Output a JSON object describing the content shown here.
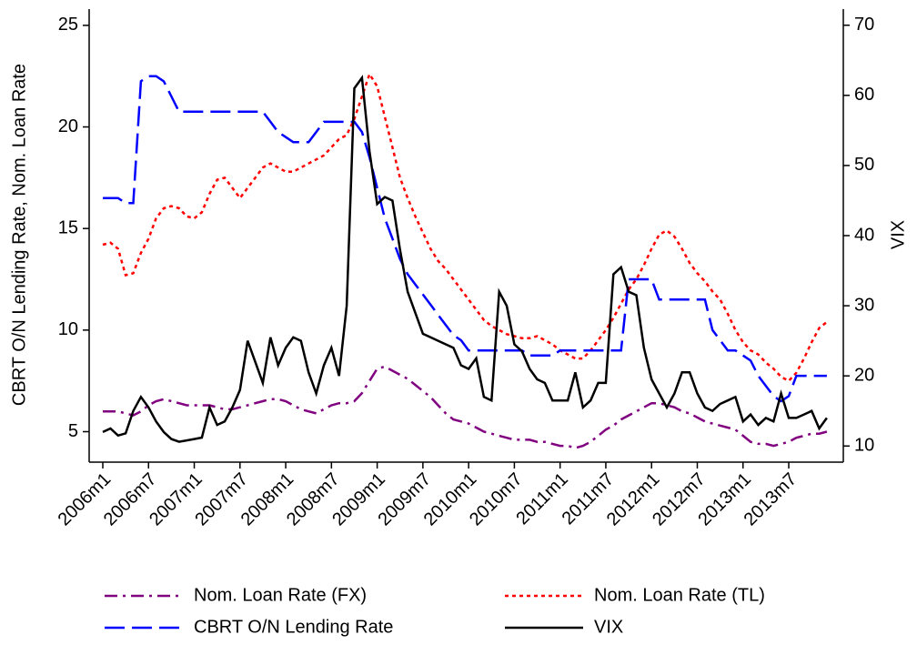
{
  "chart_data": {
    "type": "line",
    "ylabel": "CBRT O/N Lending Rate, Nom. Loan Rate",
    "y2label": "VIX",
    "categories": [
      "2006m1",
      null,
      null,
      null,
      null,
      null,
      "2006m7",
      null,
      null,
      null,
      null,
      null,
      "2007m1",
      null,
      null,
      null,
      null,
      null,
      "2007m7",
      null,
      null,
      null,
      null,
      null,
      "2008m1",
      null,
      null,
      null,
      null,
      null,
      "2008m7",
      null,
      null,
      null,
      null,
      null,
      "2009m1",
      null,
      null,
      null,
      null,
      null,
      "2009m7",
      null,
      null,
      null,
      null,
      null,
      "2010m1",
      null,
      null,
      null,
      null,
      null,
      "2010m7",
      null,
      null,
      null,
      null,
      null,
      "2011m1",
      null,
      null,
      null,
      null,
      null,
      "2011m7",
      null,
      null,
      null,
      null,
      null,
      "2012m1",
      null,
      null,
      null,
      null,
      null,
      "2012m7",
      null,
      null,
      null,
      null,
      null,
      "2013m1",
      null,
      null,
      null,
      null,
      null,
      "2013m7",
      null,
      null,
      null,
      null,
      null
    ],
    "ylim": [
      3.5,
      25.8
    ],
    "yticks": [
      5,
      10,
      15,
      20,
      25
    ],
    "y2lim": [
      7.7,
      72.3
    ],
    "y2ticks": [
      10,
      20,
      30,
      40,
      50,
      60,
      70
    ],
    "series": [
      {
        "name": "Nom. Loan Rate (FX)",
        "color": "#800080",
        "style": "dashdot",
        "values": [
          6.0,
          6.0,
          6.0,
          5.9,
          5.8,
          6.0,
          6.3,
          6.5,
          6.6,
          6.5,
          6.4,
          6.3,
          6.3,
          6.3,
          6.3,
          6.2,
          6.1,
          6.1,
          6.2,
          6.3,
          6.4,
          6.5,
          6.6,
          6.6,
          6.5,
          6.3,
          6.1,
          6.0,
          5.9,
          6.1,
          6.3,
          6.4,
          6.4,
          6.5,
          6.9,
          7.5,
          8.1,
          8.2,
          8.0,
          7.8,
          7.6,
          7.3,
          7.0,
          6.7,
          6.3,
          5.9,
          5.6,
          5.5,
          5.4,
          5.2,
          5.0,
          4.9,
          4.8,
          4.7,
          4.6,
          4.6,
          4.6,
          4.5,
          4.5,
          4.4,
          4.3,
          4.3,
          4.2,
          4.3,
          4.5,
          4.8,
          5.1,
          5.3,
          5.6,
          5.8,
          6.0,
          6.2,
          6.4,
          6.4,
          6.3,
          6.2,
          6.0,
          5.9,
          5.7,
          5.5,
          5.4,
          5.3,
          5.2,
          5.1,
          4.8,
          4.5,
          4.4,
          4.4,
          4.3,
          4.4,
          4.5,
          4.7,
          4.8,
          4.9,
          4.9,
          5.0
        ]
      },
      {
        "name": "Nom. Loan Rate (TL)",
        "color": "#ff0000",
        "style": "dotted",
        "values": [
          14.2,
          14.3,
          14.0,
          12.7,
          12.8,
          13.8,
          14.5,
          15.5,
          16.0,
          16.1,
          16.0,
          15.6,
          15.5,
          15.8,
          16.7,
          17.4,
          17.5,
          17.0,
          16.5,
          17.0,
          17.5,
          18.0,
          18.2,
          18.0,
          17.8,
          17.8,
          18.0,
          18.2,
          18.4,
          18.6,
          19.0,
          19.4,
          19.6,
          20.4,
          21.5,
          22.6,
          22.0,
          20.5,
          19.0,
          17.5,
          16.5,
          15.6,
          14.8,
          14.0,
          13.4,
          13.0,
          12.5,
          12.0,
          11.5,
          11.0,
          10.5,
          10.2,
          10.0,
          9.8,
          9.7,
          9.6,
          9.6,
          9.7,
          9.5,
          9.3,
          9.0,
          8.8,
          8.6,
          8.6,
          9.0,
          9.5,
          10.0,
          10.6,
          11.3,
          12.0,
          12.5,
          13.2,
          14.0,
          14.7,
          14.9,
          14.6,
          14.0,
          13.3,
          12.8,
          12.4,
          11.9,
          11.5,
          10.8,
          10.0,
          9.4,
          9.0,
          8.8,
          8.4,
          8.1,
          7.7,
          7.5,
          7.9,
          8.6,
          9.4,
          10.1,
          10.4
        ]
      },
      {
        "name": "CBRT O/N Lending Rate",
        "color": "#0000ff",
        "style": "dashed",
        "values": [
          16.5,
          16.5,
          16.5,
          16.25,
          16.25,
          22.25,
          22.5,
          22.5,
          22.25,
          21.5,
          20.75,
          20.75,
          20.75,
          20.75,
          20.75,
          20.75,
          20.75,
          20.75,
          20.75,
          20.75,
          20.75,
          20.75,
          20.25,
          19.75,
          19.5,
          19.25,
          19.25,
          19.25,
          19.75,
          20.25,
          20.25,
          20.25,
          20.25,
          20.25,
          19.75,
          18.5,
          17.0,
          15.5,
          14.5,
          13.5,
          12.75,
          12.25,
          11.75,
          11.25,
          10.75,
          10.25,
          9.75,
          9.5,
          9,
          9,
          9,
          9,
          9,
          9,
          9,
          9,
          8.75,
          8.75,
          8.75,
          8.75,
          9,
          9,
          9,
          9,
          9,
          9,
          9,
          9,
          9,
          12.5,
          12.5,
          12.5,
          12.5,
          11.5,
          11.5,
          11.5,
          11.5,
          11.5,
          11.5,
          11.5,
          10.0,
          9.5,
          9.0,
          9.0,
          8.75,
          8.5,
          7.75,
          7.25,
          6.75,
          6.5,
          6.75,
          7.75,
          7.75,
          7.75,
          7.75,
          7.75
        ]
      },
      {
        "name": "VIX",
        "color": "#000000",
        "style": "solid",
        "axis": "y2",
        "values": [
          12,
          12.5,
          11.5,
          11.8,
          15,
          17,
          15.5,
          13.5,
          12,
          11,
          10.6,
          10.8,
          11.0,
          11.2,
          15.5,
          13.0,
          13.5,
          15.5,
          18.0,
          25.0,
          22.0,
          19.0,
          25.5,
          21.5,
          24.0,
          25.5,
          25.0,
          20.5,
          17.5,
          21.5,
          24.0,
          20.0,
          30.0,
          61.0,
          62.5,
          52.0,
          44.5,
          45.5,
          45.0,
          38.0,
          32.0,
          29.0,
          26.0,
          25.5,
          25.0,
          24.5,
          24.0,
          21.5,
          21.0,
          22.5,
          17.0,
          16.5,
          32.0,
          30.0,
          24.5,
          23.5,
          21.0,
          19.5,
          19.0,
          16.5,
          16.5,
          16.5,
          20.5,
          15.5,
          16.5,
          19.0,
          19.0,
          34.5,
          35.5,
          32.0,
          31.5,
          24.0,
          19.5,
          17.5,
          15.5,
          17.5,
          20.5,
          20.5,
          17.5,
          15.5,
          15.0,
          16.0,
          16.5,
          17.0,
          13.5,
          14.5,
          13.0,
          14.0,
          13.5,
          17.5,
          14.0,
          14.0,
          14.5,
          15.0,
          12.5,
          14.0
        ]
      }
    ]
  }
}
